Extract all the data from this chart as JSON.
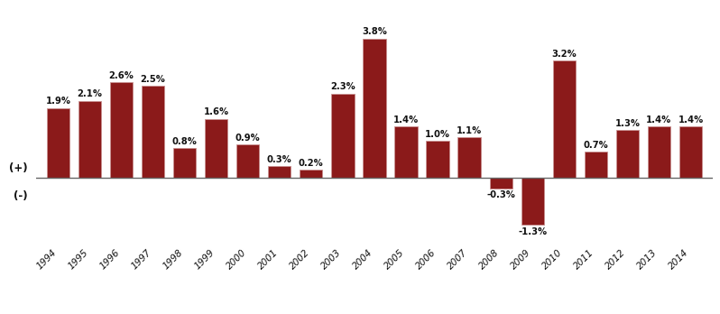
{
  "years": [
    1994,
    1995,
    1996,
    1997,
    1998,
    1999,
    2000,
    2001,
    2002,
    2003,
    2004,
    2005,
    2006,
    2007,
    2008,
    2009,
    2010,
    2011,
    2012,
    2013,
    2014
  ],
  "values": [
    1.9,
    2.1,
    2.6,
    2.5,
    0.8,
    1.6,
    0.9,
    0.3,
    0.2,
    2.3,
    3.8,
    1.4,
    1.0,
    1.1,
    -0.3,
    -1.3,
    3.2,
    0.7,
    1.3,
    1.4,
    1.4
  ],
  "bar_color": "#8B1A1A",
  "bar_edge_color": "#c89090",
  "background_color": "#ffffff",
  "zero_line_color": "#666666",
  "text_color": "#111111",
  "plus_label": "(+)",
  "minus_label": "(-)",
  "figsize": [
    7.98,
    3.48
  ],
  "dpi": 100,
  "ylim": [
    -1.85,
    4.6
  ],
  "label_fontsize": 7.2,
  "axis_label_fontsize": 8.5,
  "tick_label_fontsize": 7.5
}
